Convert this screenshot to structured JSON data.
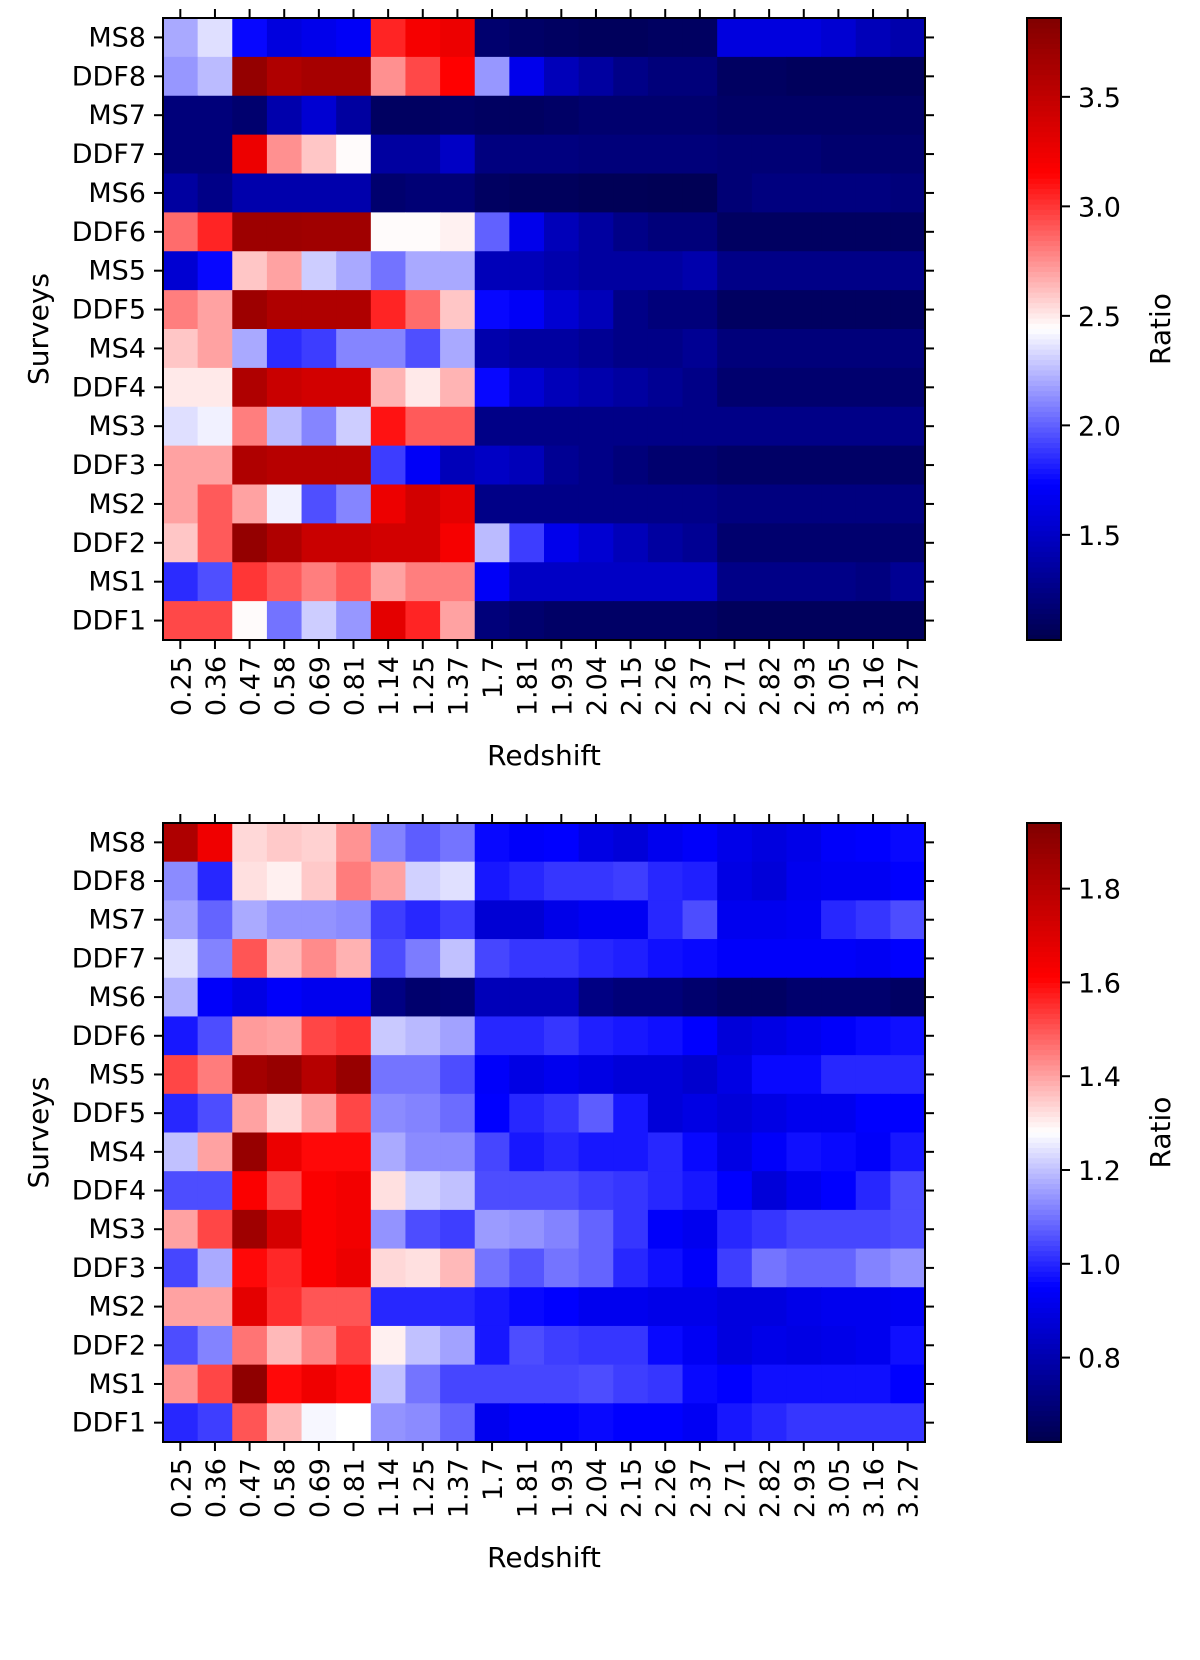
{
  "chart_data": [
    {
      "type": "heatmap",
      "xlabel": "Redshift",
      "ylabel": "Surveys",
      "colorbar_label": "Ratio",
      "colormap": "seismic",
      "vmin": 1.02,
      "vmax": 3.86,
      "colorbar_ticks": [
        "1.5",
        "2.0",
        "2.5",
        "3.0",
        "3.5"
      ],
      "x_ticks": [
        "0.25",
        "0.36",
        "0.47",
        "0.58",
        "0.69",
        "0.81",
        "1.14",
        "1.25",
        "1.37",
        "1.7",
        "1.81",
        "1.93",
        "2.04",
        "2.15",
        "2.26",
        "2.37",
        "2.71",
        "2.82",
        "2.93",
        "3.05",
        "3.16",
        "3.27"
      ],
      "rows": [
        "MS8",
        "DDF8",
        "MS7",
        "DDF7",
        "MS6",
        "DDF6",
        "MS5",
        "DDF5",
        "MS4",
        "DDF4",
        "MS3",
        "DDF3",
        "MS2",
        "DDF2",
        "MS1",
        "DDF1"
      ],
      "values": [
        [
          2.2,
          2.35,
          1.75,
          1.6,
          1.65,
          1.7,
          3.05,
          3.2,
          3.25,
          1.15,
          1.12,
          1.1,
          1.08,
          1.08,
          1.1,
          1.1,
          1.6,
          1.6,
          1.6,
          1.55,
          1.45,
          1.4
        ],
        [
          2.15,
          2.25,
          3.75,
          3.6,
          3.65,
          3.65,
          2.75,
          2.95,
          3.15,
          2.15,
          1.65,
          1.45,
          1.35,
          1.25,
          1.2,
          1.2,
          1.1,
          1.1,
          1.08,
          1.08,
          1.08,
          1.08
        ],
        [
          1.2,
          1.2,
          1.15,
          1.4,
          1.55,
          1.35,
          1.1,
          1.1,
          1.12,
          1.1,
          1.1,
          1.12,
          1.15,
          1.15,
          1.15,
          1.15,
          1.12,
          1.12,
          1.12,
          1.12,
          1.12,
          1.12
        ],
        [
          1.2,
          1.2,
          3.25,
          2.75,
          2.6,
          2.45,
          1.35,
          1.35,
          1.5,
          1.22,
          1.22,
          1.22,
          1.2,
          1.2,
          1.2,
          1.2,
          1.18,
          1.18,
          1.18,
          1.15,
          1.15,
          1.15
        ],
        [
          1.35,
          1.25,
          1.4,
          1.4,
          1.4,
          1.4,
          1.15,
          1.18,
          1.18,
          1.1,
          1.08,
          1.08,
          1.06,
          1.06,
          1.05,
          1.05,
          1.18,
          1.22,
          1.22,
          1.22,
          1.22,
          1.2
        ],
        [
          2.85,
          3.05,
          3.7,
          3.7,
          3.68,
          3.68,
          2.45,
          2.45,
          2.48,
          2.0,
          1.65,
          1.45,
          1.35,
          1.25,
          1.2,
          1.2,
          1.1,
          1.1,
          1.1,
          1.1,
          1.1,
          1.1
        ],
        [
          1.55,
          1.75,
          2.6,
          2.7,
          2.3,
          2.2,
          2.05,
          2.2,
          2.2,
          1.45,
          1.45,
          1.4,
          1.35,
          1.35,
          1.35,
          1.4,
          1.25,
          1.25,
          1.25,
          1.25,
          1.25,
          1.25
        ],
        [
          2.8,
          2.7,
          3.7,
          3.6,
          3.6,
          3.6,
          3.05,
          2.85,
          2.6,
          1.75,
          1.7,
          1.55,
          1.45,
          1.25,
          1.2,
          1.2,
          1.1,
          1.1,
          1.1,
          1.1,
          1.1,
          1.1
        ],
        [
          2.6,
          2.7,
          2.2,
          1.85,
          1.9,
          2.1,
          2.1,
          1.95,
          2.2,
          1.4,
          1.35,
          1.35,
          1.3,
          1.25,
          1.25,
          1.3,
          1.2,
          1.2,
          1.2,
          1.2,
          1.2,
          1.2
        ],
        [
          2.5,
          2.5,
          3.6,
          3.45,
          3.4,
          3.4,
          2.65,
          2.5,
          2.65,
          1.75,
          1.55,
          1.45,
          1.4,
          1.35,
          1.3,
          1.25,
          1.15,
          1.15,
          1.15,
          1.15,
          1.15,
          1.15
        ],
        [
          2.35,
          2.4,
          2.8,
          2.25,
          2.1,
          2.3,
          3.1,
          2.9,
          2.9,
          1.25,
          1.25,
          1.25,
          1.25,
          1.25,
          1.25,
          1.25,
          1.25,
          1.25,
          1.25,
          1.25,
          1.25,
          1.25
        ],
        [
          2.7,
          2.7,
          3.6,
          3.55,
          3.55,
          3.55,
          1.9,
          1.7,
          1.45,
          1.5,
          1.45,
          1.3,
          1.25,
          1.2,
          1.15,
          1.15,
          1.12,
          1.12,
          1.12,
          1.12,
          1.12,
          1.12
        ],
        [
          2.7,
          2.9,
          2.7,
          2.4,
          1.95,
          2.1,
          3.25,
          3.4,
          3.3,
          1.25,
          1.25,
          1.25,
          1.25,
          1.25,
          1.25,
          1.25,
          1.22,
          1.22,
          1.22,
          1.22,
          1.22,
          1.22
        ],
        [
          2.6,
          2.9,
          3.75,
          3.6,
          3.45,
          3.45,
          3.4,
          3.4,
          3.2,
          2.25,
          1.9,
          1.65,
          1.55,
          1.45,
          1.35,
          1.3,
          1.15,
          1.15,
          1.15,
          1.15,
          1.15,
          1.15
        ],
        [
          1.85,
          1.95,
          3.0,
          2.9,
          2.8,
          2.9,
          2.7,
          2.8,
          2.8,
          1.7,
          1.5,
          1.5,
          1.5,
          1.5,
          1.5,
          1.5,
          1.25,
          1.25,
          1.25,
          1.25,
          1.22,
          1.3
        ],
        [
          2.95,
          2.95,
          2.45,
          2.05,
          2.3,
          2.15,
          3.3,
          3.05,
          2.7,
          1.2,
          1.15,
          1.12,
          1.12,
          1.12,
          1.12,
          1.12,
          1.08,
          1.08,
          1.08,
          1.08,
          1.08,
          1.08
        ]
      ]
    },
    {
      "type": "heatmap",
      "xlabel": "Redshift",
      "ylabel": "Surveys",
      "colorbar_label": "Ratio",
      "colormap": "seismic",
      "vmin": 0.62,
      "vmax": 1.94,
      "colorbar_ticks": [
        "0.8",
        "1.0",
        "1.2",
        "1.4",
        "1.6",
        "1.8"
      ],
      "x_ticks": [
        "0.25",
        "0.36",
        "0.47",
        "0.58",
        "0.69",
        "0.81",
        "1.14",
        "1.25",
        "1.37",
        "1.7",
        "1.81",
        "1.93",
        "2.04",
        "2.15",
        "2.26",
        "2.37",
        "2.71",
        "2.82",
        "2.93",
        "3.05",
        "3.16",
        "3.27"
      ],
      "rows": [
        "MS8",
        "DDF8",
        "MS7",
        "DDF7",
        "MS6",
        "DDF6",
        "MS5",
        "DDF5",
        "MS4",
        "DDF4",
        "MS3",
        "DDF3",
        "MS2",
        "DDF2",
        "MS1",
        "DDF1"
      ],
      "values": [
        [
          1.82,
          1.65,
          1.33,
          1.35,
          1.34,
          1.42,
          1.12,
          1.07,
          1.1,
          0.96,
          0.94,
          0.95,
          0.9,
          0.88,
          0.92,
          0.94,
          0.91,
          0.89,
          0.91,
          0.94,
          0.95,
          0.96
        ],
        [
          1.13,
          1.0,
          1.32,
          1.3,
          1.35,
          1.45,
          1.4,
          1.22,
          1.24,
          0.98,
          1.0,
          1.02,
          1.02,
          1.03,
          1.0,
          0.99,
          0.9,
          0.88,
          0.92,
          0.93,
          0.93,
          0.95
        ],
        [
          1.16,
          1.08,
          1.17,
          1.14,
          1.14,
          1.13,
          1.03,
          1.0,
          1.03,
          0.87,
          0.87,
          0.91,
          0.93,
          0.93,
          1.0,
          1.05,
          0.92,
          0.92,
          0.93,
          1.0,
          1.02,
          1.05
        ],
        [
          1.24,
          1.12,
          1.5,
          1.37,
          1.43,
          1.38,
          1.05,
          1.11,
          1.2,
          1.04,
          1.02,
          1.02,
          1.0,
          0.99,
          0.97,
          0.96,
          0.94,
          0.94,
          0.94,
          0.94,
          0.93,
          0.95
        ],
        [
          1.18,
          0.94,
          0.9,
          0.94,
          0.92,
          0.92,
          0.72,
          0.68,
          0.69,
          0.82,
          0.82,
          0.82,
          0.72,
          0.7,
          0.7,
          0.68,
          0.66,
          0.66,
          0.68,
          0.68,
          0.68,
          0.66
        ],
        [
          0.98,
          1.05,
          1.41,
          1.4,
          1.52,
          1.54,
          1.21,
          1.19,
          1.16,
          1.0,
          1.0,
          1.02,
          0.99,
          0.98,
          0.97,
          0.95,
          0.88,
          0.9,
          0.92,
          0.94,
          0.96,
          0.97
        ],
        [
          1.52,
          1.45,
          1.85,
          1.88,
          1.8,
          1.88,
          1.1,
          1.1,
          1.05,
          0.94,
          0.9,
          0.92,
          0.9,
          0.88,
          0.88,
          0.86,
          0.9,
          0.96,
          0.96,
          1.0,
          1.0,
          1.0
        ],
        [
          1.0,
          1.05,
          1.4,
          1.33,
          1.4,
          1.52,
          1.13,
          1.12,
          1.09,
          0.95,
          1.0,
          1.02,
          1.07,
          0.98,
          0.88,
          0.9,
          0.88,
          0.9,
          0.92,
          0.92,
          0.95,
          0.95
        ],
        [
          1.2,
          1.4,
          1.88,
          1.66,
          1.6,
          1.6,
          1.17,
          1.13,
          1.13,
          1.04,
          0.98,
          1.0,
          0.98,
          0.98,
          1.0,
          0.96,
          0.9,
          0.94,
          0.97,
          0.96,
          0.94,
          0.98
        ],
        [
          1.05,
          1.05,
          1.62,
          1.52,
          1.62,
          1.64,
          1.32,
          1.22,
          1.2,
          1.05,
          1.05,
          1.05,
          1.03,
          1.02,
          1.0,
          0.98,
          0.95,
          0.88,
          0.92,
          0.95,
          1.0,
          1.05
        ],
        [
          1.4,
          1.52,
          1.86,
          1.72,
          1.62,
          1.64,
          1.14,
          1.05,
          1.03,
          1.15,
          1.14,
          1.12,
          1.08,
          1.02,
          0.94,
          0.92,
          1.0,
          1.02,
          1.04,
          1.04,
          1.04,
          1.05
        ],
        [
          1.04,
          1.17,
          1.6,
          1.56,
          1.62,
          1.66,
          1.33,
          1.32,
          1.37,
          1.1,
          1.06,
          1.1,
          1.08,
          1.0,
          0.97,
          0.94,
          1.03,
          1.1,
          1.08,
          1.08,
          1.12,
          1.14
        ],
        [
          1.4,
          1.4,
          1.68,
          1.55,
          1.5,
          1.5,
          1.0,
          1.0,
          1.0,
          0.98,
          0.96,
          0.95,
          0.92,
          0.92,
          0.91,
          0.91,
          0.89,
          0.89,
          0.91,
          0.92,
          0.92,
          0.93
        ],
        [
          1.05,
          1.12,
          1.46,
          1.37,
          1.44,
          1.53,
          1.3,
          1.2,
          1.16,
          0.98,
          1.05,
          1.03,
          1.02,
          1.02,
          0.96,
          0.93,
          0.89,
          0.91,
          0.9,
          0.91,
          0.92,
          0.97
        ],
        [
          1.42,
          1.52,
          1.9,
          1.6,
          1.65,
          1.6,
          1.2,
          1.1,
          1.04,
          1.04,
          1.04,
          1.04,
          1.05,
          1.03,
          1.02,
          0.96,
          0.95,
          0.97,
          0.97,
          0.97,
          0.97,
          0.95
        ],
        [
          1.0,
          1.03,
          1.5,
          1.37,
          1.27,
          1.28,
          1.14,
          1.13,
          1.08,
          0.92,
          0.95,
          0.95,
          0.96,
          0.95,
          0.95,
          0.93,
          0.98,
          1.0,
          1.02,
          1.02,
          1.02,
          1.02
        ]
      ]
    }
  ]
}
